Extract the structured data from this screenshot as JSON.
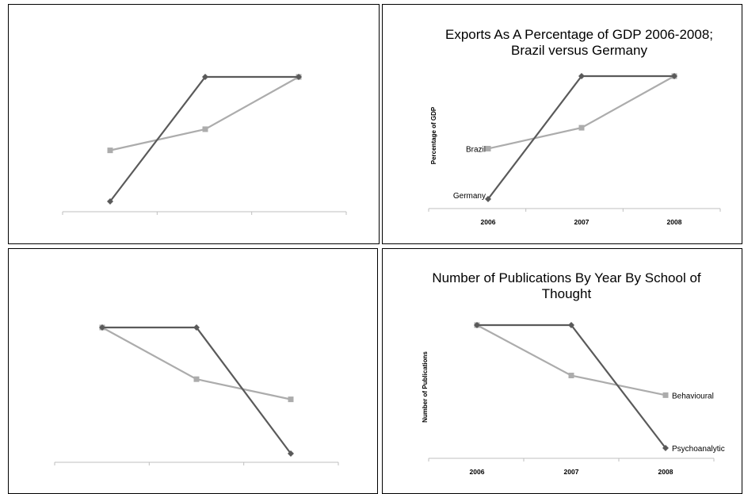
{
  "chart_data": [
    {
      "type": "line",
      "title": [],
      "ylabel": "",
      "categories": [
        "",
        "",
        ""
      ],
      "series": [
        {
          "name": "",
          "color": "#5a5a5a",
          "marker": "diamond",
          "values": [
            0,
            1,
            1
          ]
        },
        {
          "name": "",
          "color": "#acacac",
          "marker": "square",
          "values": [
            0.41,
            0.58,
            1
          ]
        }
      ],
      "ylim": [
        0,
        1
      ]
    },
    {
      "type": "line",
      "title": [
        "Exports As A Percentage of GDP 2006-2008;",
        "Brazil versus Germany"
      ],
      "ylabel": "Percentage of GDP",
      "categories": [
        "2006",
        "2007",
        "2008"
      ],
      "series": [
        {
          "name": "Germany",
          "color": "#5a5a5a",
          "marker": "diamond",
          "values": [
            0,
            1,
            1
          ]
        },
        {
          "name": "Brazil",
          "color": "#acacac",
          "marker": "square",
          "values": [
            0.41,
            0.58,
            1
          ]
        }
      ],
      "ylim": [
        0,
        1
      ]
    },
    {
      "type": "line",
      "title": [],
      "ylabel": "",
      "categories": [
        "",
        "",
        ""
      ],
      "series": [
        {
          "name": "",
          "color": "#5a5a5a",
          "marker": "diamond",
          "values": [
            1,
            1,
            0
          ]
        },
        {
          "name": "",
          "color": "#acacac",
          "marker": "square",
          "values": [
            1,
            0.59,
            0.43
          ]
        }
      ],
      "ylim": [
        0,
        1
      ]
    },
    {
      "type": "line",
      "title": [
        "Number of Publications By Year By School of",
        "Thought"
      ],
      "ylabel": "Number of Publications",
      "categories": [
        "2006",
        "2007",
        "2008"
      ],
      "series": [
        {
          "name": "Psychoanalytic",
          "color": "#5a5a5a",
          "marker": "diamond",
          "values": [
            1,
            1,
            0
          ]
        },
        {
          "name": "Behavioural",
          "color": "#acacac",
          "marker": "square",
          "values": [
            1,
            0.59,
            0.43
          ]
        }
      ],
      "ylim": [
        0,
        1
      ]
    }
  ]
}
